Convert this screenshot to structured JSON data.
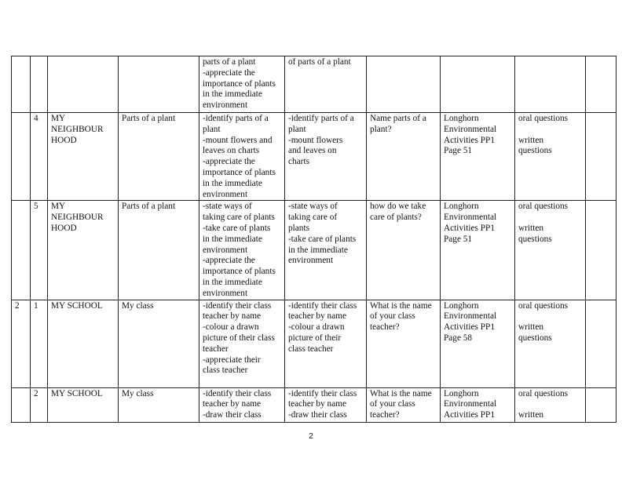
{
  "page_number": "2",
  "rows": [
    {
      "week": "",
      "lesson": "",
      "strand": [],
      "sub_strand": "",
      "outcomes": [
        "parts of a plant",
        "-appreciate the",
        "importance of plants",
        "in the immediate",
        "environment"
      ],
      "activities": [
        "of parts of a plant"
      ],
      "inquiry": [],
      "resources": [],
      "assessment": [],
      "remarks": ""
    },
    {
      "week": "",
      "lesson": "4",
      "strand": [
        "MY",
        "NEIGHBOUR",
        "HOOD"
      ],
      "sub_strand": "Parts of a plant",
      "outcomes": [
        "-identify parts of a",
        "plant",
        "-mount flowers and",
        "leaves on charts",
        "-appreciate the",
        "importance of plants",
        "in the immediate",
        "environment"
      ],
      "activities": [
        " -identify parts of a",
        "plant",
        "-mount flowers",
        "and leaves on",
        "charts"
      ],
      "inquiry": [
        " Name parts of a",
        "plant?"
      ],
      "resources": [
        "Longhorn",
        "Environmental",
        "Activities  PP1",
        "Page 51"
      ],
      "assessment": [
        "oral questions",
        "",
        "written",
        "questions"
      ],
      "remarks": ""
    },
    {
      "week": "",
      "lesson": "5",
      "strand": [
        "MY",
        "NEIGHBOUR",
        "HOOD"
      ],
      "sub_strand": "Parts of a plant",
      "outcomes": [
        "-state ways of",
        "taking care of plants",
        "-take care of plants",
        "in the immediate",
        "environment",
        "-appreciate the",
        "importance of plants",
        "in the immediate",
        "environment"
      ],
      "activities": [
        "-state ways of",
        "taking care of",
        "plants",
        "-take care of plants",
        "in the immediate",
        "environment"
      ],
      "inquiry": [
        "how  do we take",
        "care of plants?"
      ],
      "resources": [
        "Longhorn",
        "Environmental",
        "Activities  PP1",
        "Page 51"
      ],
      "assessment": [
        "oral questions",
        "",
        "written",
        "questions"
      ],
      "remarks": ""
    },
    {
      "week": "2",
      "lesson": "1",
      "strand": [
        "MY SCHOOL"
      ],
      "sub_strand": "My class",
      "outcomes": [
        "-identify their class",
        "teacher by name",
        "-colour a drawn",
        "picture of their class",
        "teacher",
        "-appreciate their",
        "class teacher"
      ],
      "activities": [
        "-identify their class",
        "teacher by name",
        "-colour a drawn",
        "picture of their",
        "class teacher"
      ],
      "inquiry": [
        "What is the name",
        "of your class",
        "teacher?"
      ],
      "resources": [
        "Longhorn",
        "Environmental",
        "Activities  PP1",
        "Page 58"
      ],
      "assessment": [
        "oral questions",
        "",
        "written",
        "questions"
      ],
      "remarks": ""
    },
    {
      "week": "",
      "lesson": "2",
      "strand": [
        "MY SCHOOL"
      ],
      "sub_strand": "My class",
      "outcomes": [
        "-identify their class",
        "teacher by name",
        "-draw their class"
      ],
      "activities": [
        "-identify their class",
        "teacher by name",
        "-draw their class"
      ],
      "inquiry": [
        "What is the name",
        "of your class",
        "teacher?"
      ],
      "resources": [
        "Longhorn",
        "Environmental",
        "Activities  PP1"
      ],
      "assessment": [
        "oral questions",
        "",
        "written"
      ],
      "remarks": ""
    }
  ]
}
